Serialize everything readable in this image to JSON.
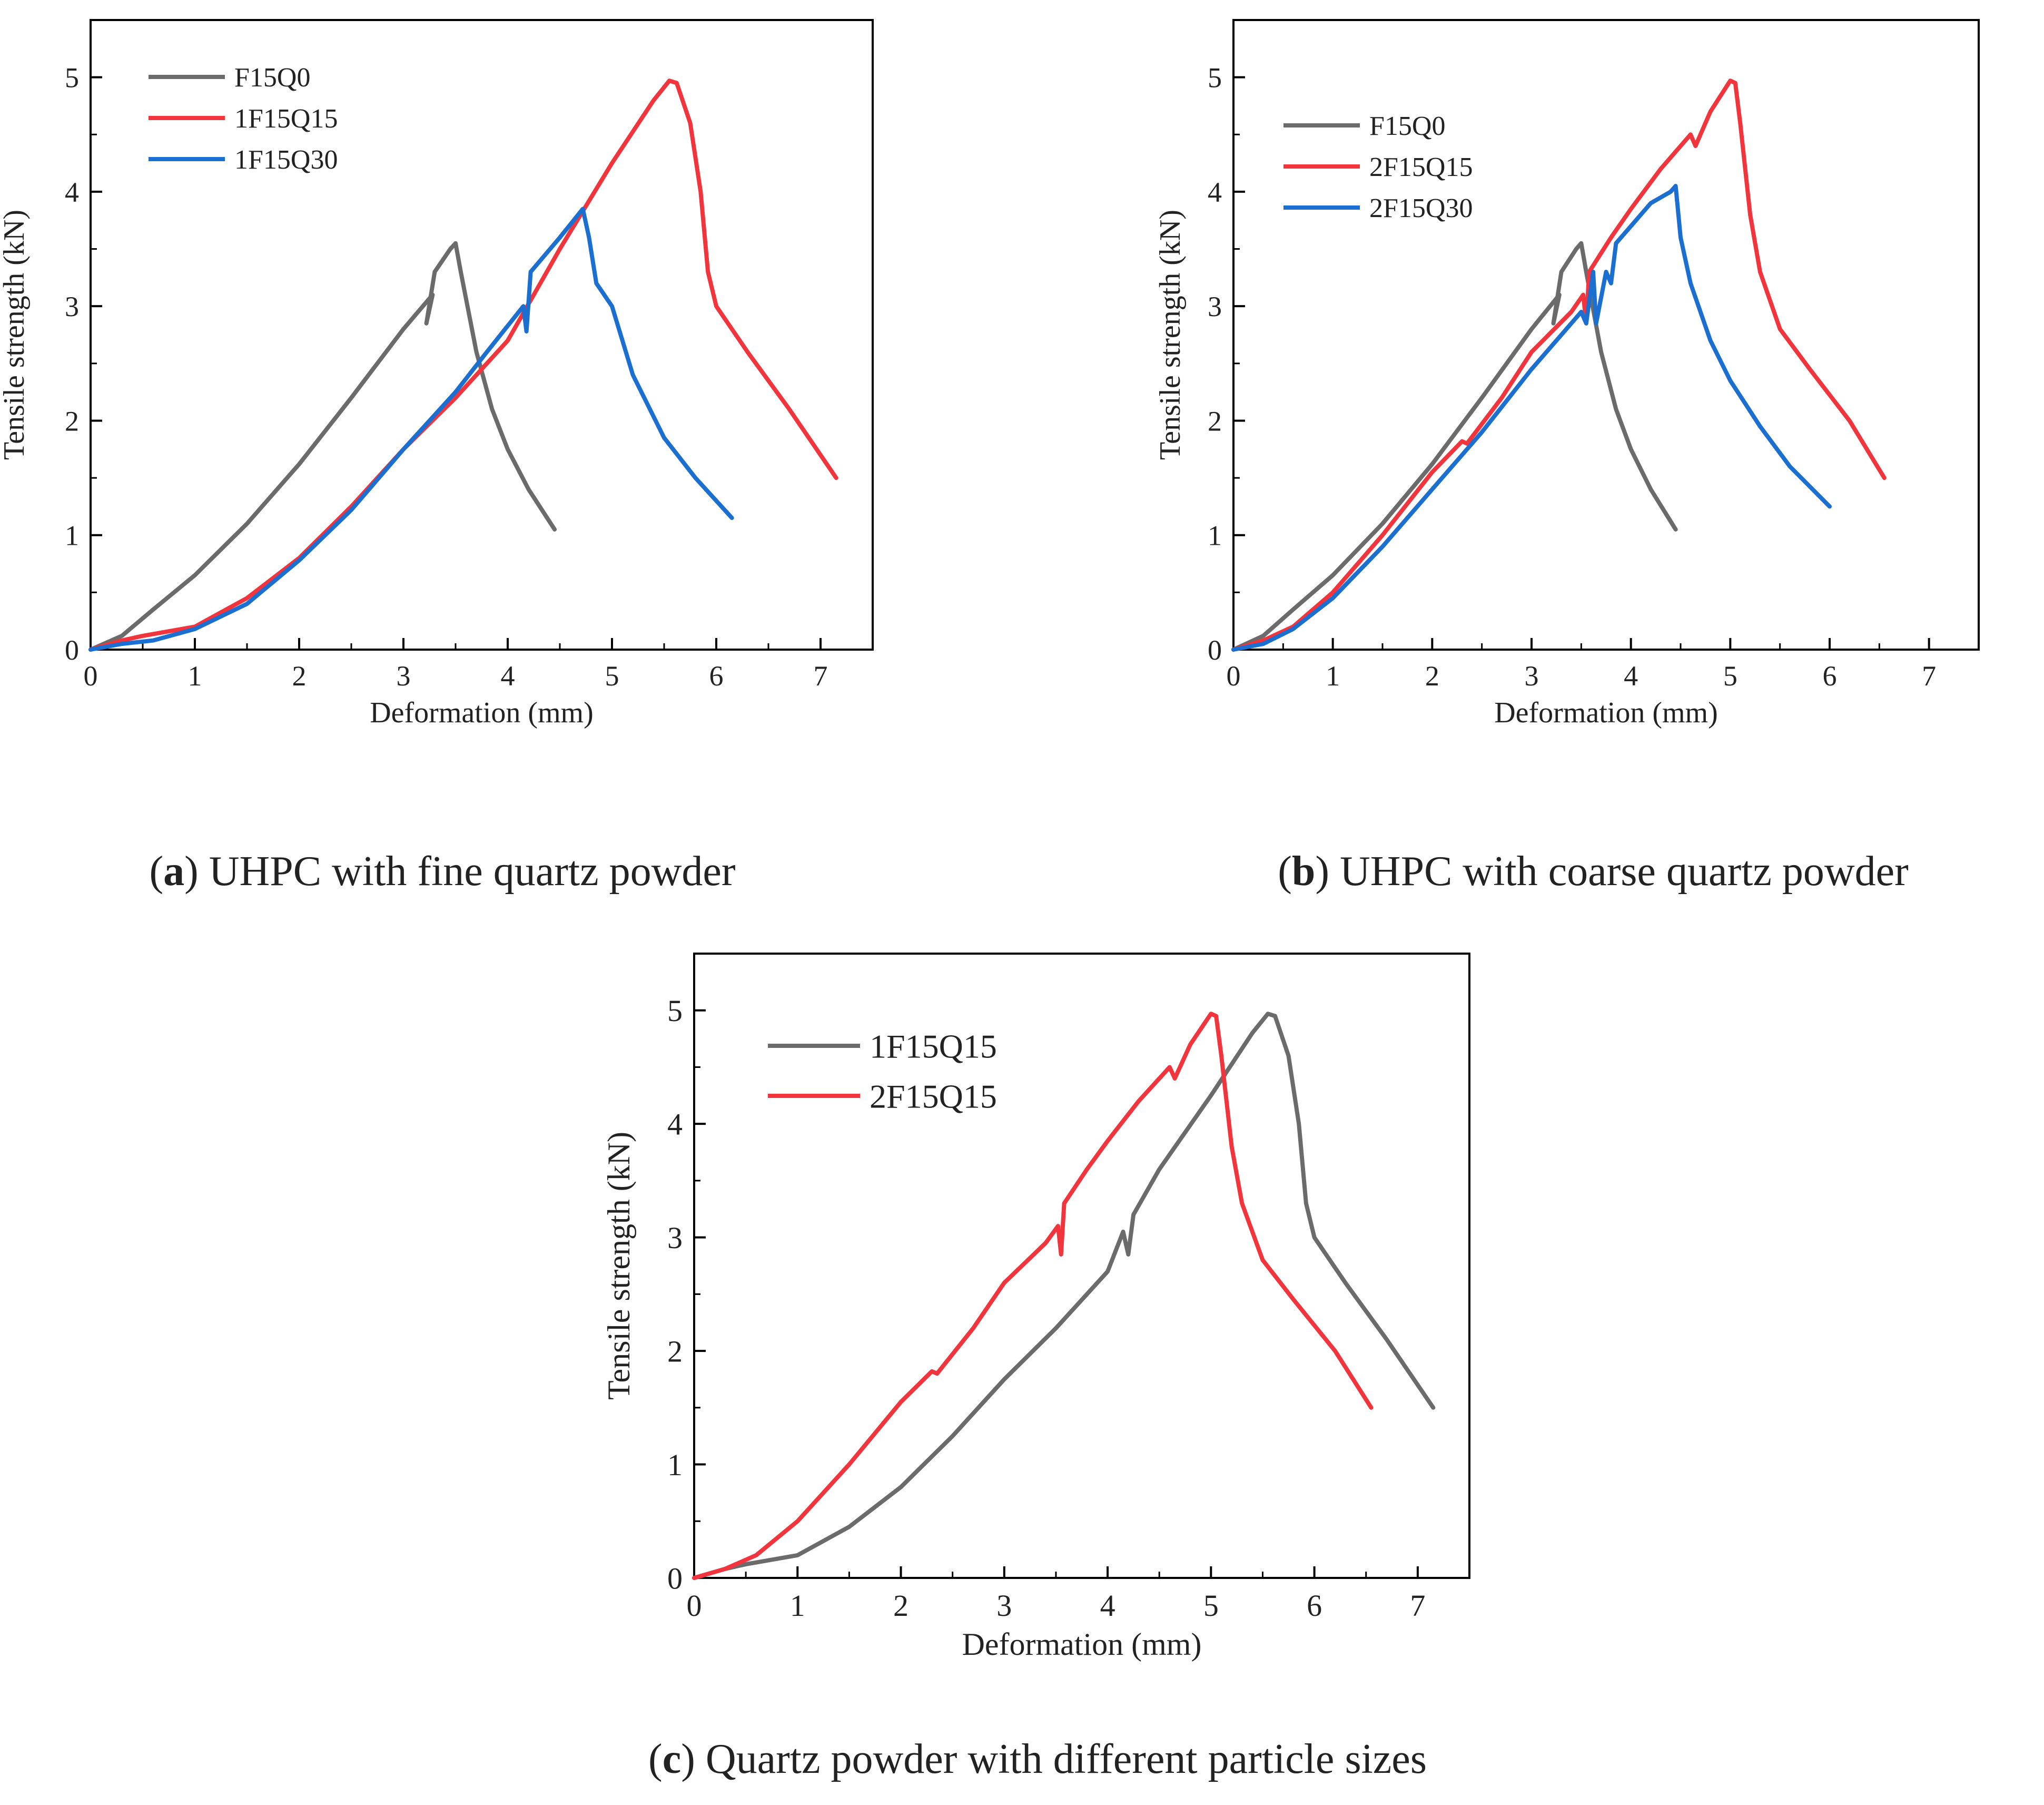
{
  "colors": {
    "gray": "#6b6b6b",
    "red": "#f2353c",
    "blue": "#1a6fd1",
    "axis": "#000000"
  },
  "chart_data": [
    {
      "id": "a",
      "type": "line",
      "caption_letter": "a",
      "caption_text": ") UHPC with fine quartz powder",
      "xlabel": "Deformation (mm)",
      "ylabel": "Tensile strength (kN)",
      "xlim": [
        0,
        7.5
      ],
      "ylim": [
        0,
        5.5
      ],
      "xticks": [
        0,
        1,
        2,
        3,
        4,
        5,
        6,
        7
      ],
      "yticks": [
        0,
        1,
        2,
        3,
        4,
        5
      ],
      "legend": "top-left",
      "series": [
        {
          "name": "F15Q0",
          "color": "gray",
          "points": [
            [
              0,
              0
            ],
            [
              0.3,
              0.12
            ],
            [
              0.6,
              0.35
            ],
            [
              1.0,
              0.65
            ],
            [
              1.5,
              1.1
            ],
            [
              2.0,
              1.62
            ],
            [
              2.5,
              2.2
            ],
            [
              3.0,
              2.8
            ],
            [
              3.28,
              3.1
            ],
            [
              3.22,
              2.85
            ],
            [
              3.3,
              3.3
            ],
            [
              3.45,
              3.5
            ],
            [
              3.5,
              3.55
            ],
            [
              3.55,
              3.3
            ],
            [
              3.7,
              2.6
            ],
            [
              3.85,
              2.1
            ],
            [
              4.0,
              1.75
            ],
            [
              4.2,
              1.4
            ],
            [
              4.45,
              1.05
            ]
          ]
        },
        {
          "name": "1F15Q15",
          "color": "red",
          "points": [
            [
              0,
              0
            ],
            [
              0.3,
              0.08
            ],
            [
              0.5,
              0.12
            ],
            [
              1.0,
              0.2
            ],
            [
              1.5,
              0.45
            ],
            [
              2.0,
              0.8
            ],
            [
              2.5,
              1.25
            ],
            [
              3.0,
              1.75
            ],
            [
              3.5,
              2.2
            ],
            [
              4.0,
              2.7
            ],
            [
              4.5,
              3.5
            ],
            [
              5.0,
              4.25
            ],
            [
              5.4,
              4.8
            ],
            [
              5.55,
              4.97
            ],
            [
              5.62,
              4.95
            ],
            [
              5.75,
              4.6
            ],
            [
              5.85,
              4.0
            ],
            [
              5.92,
              3.3
            ],
            [
              6.0,
              3.0
            ],
            [
              6.3,
              2.6
            ],
            [
              6.7,
              2.1
            ],
            [
              7.15,
              1.5
            ]
          ]
        },
        {
          "name": "1F15Q30",
          "color": "blue",
          "points": [
            [
              0,
              0
            ],
            [
              0.3,
              0.05
            ],
            [
              0.6,
              0.08
            ],
            [
              1.0,
              0.18
            ],
            [
              1.5,
              0.4
            ],
            [
              2.0,
              0.78
            ],
            [
              2.5,
              1.22
            ],
            [
              3.0,
              1.75
            ],
            [
              3.5,
              2.25
            ],
            [
              3.8,
              2.6
            ],
            [
              4.15,
              3.0
            ],
            [
              4.18,
              2.78
            ],
            [
              4.22,
              3.3
            ],
            [
              4.5,
              3.6
            ],
            [
              4.72,
              3.85
            ],
            [
              4.78,
              3.6
            ],
            [
              4.85,
              3.2
            ],
            [
              5.0,
              3.0
            ],
            [
              5.2,
              2.4
            ],
            [
              5.5,
              1.85
            ],
            [
              5.8,
              1.5
            ],
            [
              6.15,
              1.15
            ]
          ]
        }
      ]
    },
    {
      "id": "b",
      "type": "line",
      "caption_letter": "b",
      "caption_text": ") UHPC with coarse quartz powder",
      "xlabel": "Deformation (mm)",
      "ylabel": "Tensile strength (kN)",
      "xlim": [
        0,
        7.5
      ],
      "ylim": [
        0,
        5.5
      ],
      "xticks": [
        0,
        1,
        2,
        3,
        4,
        5,
        6,
        7
      ],
      "yticks": [
        0,
        1,
        2,
        3,
        4,
        5
      ],
      "legend": "top-left",
      "series": [
        {
          "name": "F15Q0",
          "color": "gray",
          "points": [
            [
              0,
              0
            ],
            [
              0.3,
              0.12
            ],
            [
              0.6,
              0.35
            ],
            [
              1.0,
              0.65
            ],
            [
              1.5,
              1.1
            ],
            [
              2.0,
              1.62
            ],
            [
              2.5,
              2.2
            ],
            [
              3.0,
              2.8
            ],
            [
              3.28,
              3.1
            ],
            [
              3.22,
              2.85
            ],
            [
              3.3,
              3.3
            ],
            [
              3.45,
              3.5
            ],
            [
              3.5,
              3.55
            ],
            [
              3.55,
              3.3
            ],
            [
              3.7,
              2.6
            ],
            [
              3.85,
              2.1
            ],
            [
              4.0,
              1.75
            ],
            [
              4.2,
              1.4
            ],
            [
              4.45,
              1.05
            ]
          ]
        },
        {
          "name": "2F15Q15",
          "color": "red",
          "points": [
            [
              0,
              0
            ],
            [
              0.3,
              0.08
            ],
            [
              0.6,
              0.2
            ],
            [
              1.0,
              0.5
            ],
            [
              1.5,
              1.0
            ],
            [
              2.0,
              1.55
            ],
            [
              2.3,
              1.82
            ],
            [
              2.35,
              1.8
            ],
            [
              2.7,
              2.2
            ],
            [
              3.0,
              2.6
            ],
            [
              3.4,
              2.95
            ],
            [
              3.52,
              3.1
            ],
            [
              3.55,
              2.85
            ],
            [
              3.58,
              3.3
            ],
            [
              3.8,
              3.6
            ],
            [
              4.0,
              3.85
            ],
            [
              4.3,
              4.2
            ],
            [
              4.6,
              4.5
            ],
            [
              4.65,
              4.4
            ],
            [
              4.8,
              4.7
            ],
            [
              5.0,
              4.97
            ],
            [
              5.05,
              4.95
            ],
            [
              5.1,
              4.6
            ],
            [
              5.2,
              3.8
            ],
            [
              5.3,
              3.3
            ],
            [
              5.5,
              2.8
            ],
            [
              5.8,
              2.45
            ],
            [
              6.2,
              2.0
            ],
            [
              6.55,
              1.5
            ]
          ]
        },
        {
          "name": "2F15Q30",
          "color": "blue",
          "points": [
            [
              0,
              0
            ],
            [
              0.3,
              0.05
            ],
            [
              0.6,
              0.18
            ],
            [
              1.0,
              0.45
            ],
            [
              1.5,
              0.9
            ],
            [
              2.0,
              1.4
            ],
            [
              2.5,
              1.9
            ],
            [
              3.0,
              2.45
            ],
            [
              3.3,
              2.75
            ],
            [
              3.5,
              2.95
            ],
            [
              3.55,
              2.85
            ],
            [
              3.62,
              3.3
            ],
            [
              3.65,
              2.85
            ],
            [
              3.75,
              3.3
            ],
            [
              3.8,
              3.2
            ],
            [
              3.85,
              3.55
            ],
            [
              4.0,
              3.7
            ],
            [
              4.2,
              3.9
            ],
            [
              4.4,
              4.0
            ],
            [
              4.45,
              4.05
            ],
            [
              4.5,
              3.6
            ],
            [
              4.6,
              3.2
            ],
            [
              4.8,
              2.7
            ],
            [
              5.0,
              2.35
            ],
            [
              5.3,
              1.95
            ],
            [
              5.6,
              1.6
            ],
            [
              6.0,
              1.25
            ]
          ]
        }
      ]
    },
    {
      "id": "c",
      "type": "line",
      "caption_letter": "c",
      "caption_text": ") Quartz powder with different particle sizes",
      "xlabel": "Deformation (mm)",
      "ylabel": "Tensile strength (kN)",
      "xlim": [
        0,
        7.5
      ],
      "ylim": [
        0,
        5.5
      ],
      "xticks": [
        0,
        1,
        2,
        3,
        4,
        5,
        6,
        7
      ],
      "yticks": [
        0,
        1,
        2,
        3,
        4,
        5
      ],
      "legend": "top-left",
      "series": [
        {
          "name": "1F15Q15",
          "color": "gray",
          "points": [
            [
              0,
              0
            ],
            [
              0.3,
              0.08
            ],
            [
              0.5,
              0.12
            ],
            [
              1.0,
              0.2
            ],
            [
              1.5,
              0.45
            ],
            [
              2.0,
              0.8
            ],
            [
              2.5,
              1.25
            ],
            [
              3.0,
              1.75
            ],
            [
              3.5,
              2.2
            ],
            [
              4.0,
              2.7
            ],
            [
              4.15,
              3.05
            ],
            [
              4.2,
              2.85
            ],
            [
              4.25,
              3.2
            ],
            [
              4.5,
              3.6
            ],
            [
              5.0,
              4.25
            ],
            [
              5.4,
              4.8
            ],
            [
              5.55,
              4.97
            ],
            [
              5.62,
              4.95
            ],
            [
              5.75,
              4.6
            ],
            [
              5.85,
              4.0
            ],
            [
              5.92,
              3.3
            ],
            [
              6.0,
              3.0
            ],
            [
              6.3,
              2.6
            ],
            [
              6.7,
              2.1
            ],
            [
              7.15,
              1.5
            ]
          ]
        },
        {
          "name": "2F15Q15",
          "color": "red",
          "points": [
            [
              0,
              0
            ],
            [
              0.3,
              0.08
            ],
            [
              0.6,
              0.2
            ],
            [
              1.0,
              0.5
            ],
            [
              1.5,
              1.0
            ],
            [
              2.0,
              1.55
            ],
            [
              2.3,
              1.82
            ],
            [
              2.35,
              1.8
            ],
            [
              2.7,
              2.2
            ],
            [
              3.0,
              2.6
            ],
            [
              3.4,
              2.95
            ],
            [
              3.52,
              3.1
            ],
            [
              3.55,
              2.85
            ],
            [
              3.58,
              3.3
            ],
            [
              3.8,
              3.6
            ],
            [
              4.0,
              3.85
            ],
            [
              4.3,
              4.2
            ],
            [
              4.6,
              4.5
            ],
            [
              4.65,
              4.4
            ],
            [
              4.8,
              4.7
            ],
            [
              5.0,
              4.97
            ],
            [
              5.05,
              4.95
            ],
            [
              5.1,
              4.6
            ],
            [
              5.2,
              3.8
            ],
            [
              5.3,
              3.3
            ],
            [
              5.5,
              2.8
            ],
            [
              5.8,
              2.45
            ],
            [
              6.2,
              2.0
            ],
            [
              6.55,
              1.5
            ]
          ]
        }
      ]
    }
  ]
}
